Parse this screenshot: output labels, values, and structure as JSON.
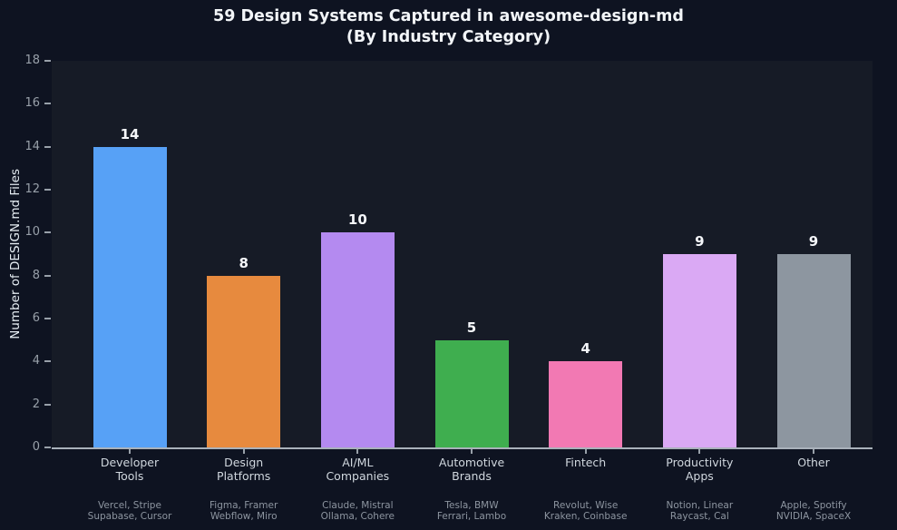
{
  "chart_data": {
    "type": "bar",
    "title": "59 Design Systems Captured in awesome-design-md\n(By Industry Category)",
    "ylabel": "Number of DESIGN.md Files",
    "ylim": [
      0,
      18
    ],
    "yticks": [
      0,
      2,
      4,
      6,
      8,
      10,
      12,
      14,
      16,
      18
    ],
    "grid": false,
    "legend": false,
    "categories": [
      "Developer\nTools",
      "Design\nPlatforms",
      "AI/ML\nCompanies",
      "Automotive\nBrands",
      "Fintech",
      "Productivity\nApps",
      "Other"
    ],
    "values": [
      14,
      8,
      10,
      5,
      4,
      9,
      9
    ],
    "bar_colors": [
      "#57a1f6",
      "#e78a3e",
      "#b48af0",
      "#3fae4f",
      "#f279b3",
      "#daa9f4",
      "#8d96a0"
    ],
    "sublabels": [
      "Vercel, Stripe\nSupabase, Cursor",
      "Figma, Framer\nWebflow, Miro",
      "Claude, Mistral\nOllama, Cohere",
      "Tesla, BMW\nFerrari, Lambo",
      "Revolut, Wise\nKraken, Coinbase",
      "Notion, Linear\nRaycast, Cal",
      "Apple, Spotify\nNVIDIA, SpaceX"
    ],
    "colors": {
      "background": "#0e1321",
      "plot_background": "#161b26",
      "axis_line": "#a9b1ba",
      "tick_text": "#98a0a9",
      "title_text": "#f2f5f8"
    }
  }
}
